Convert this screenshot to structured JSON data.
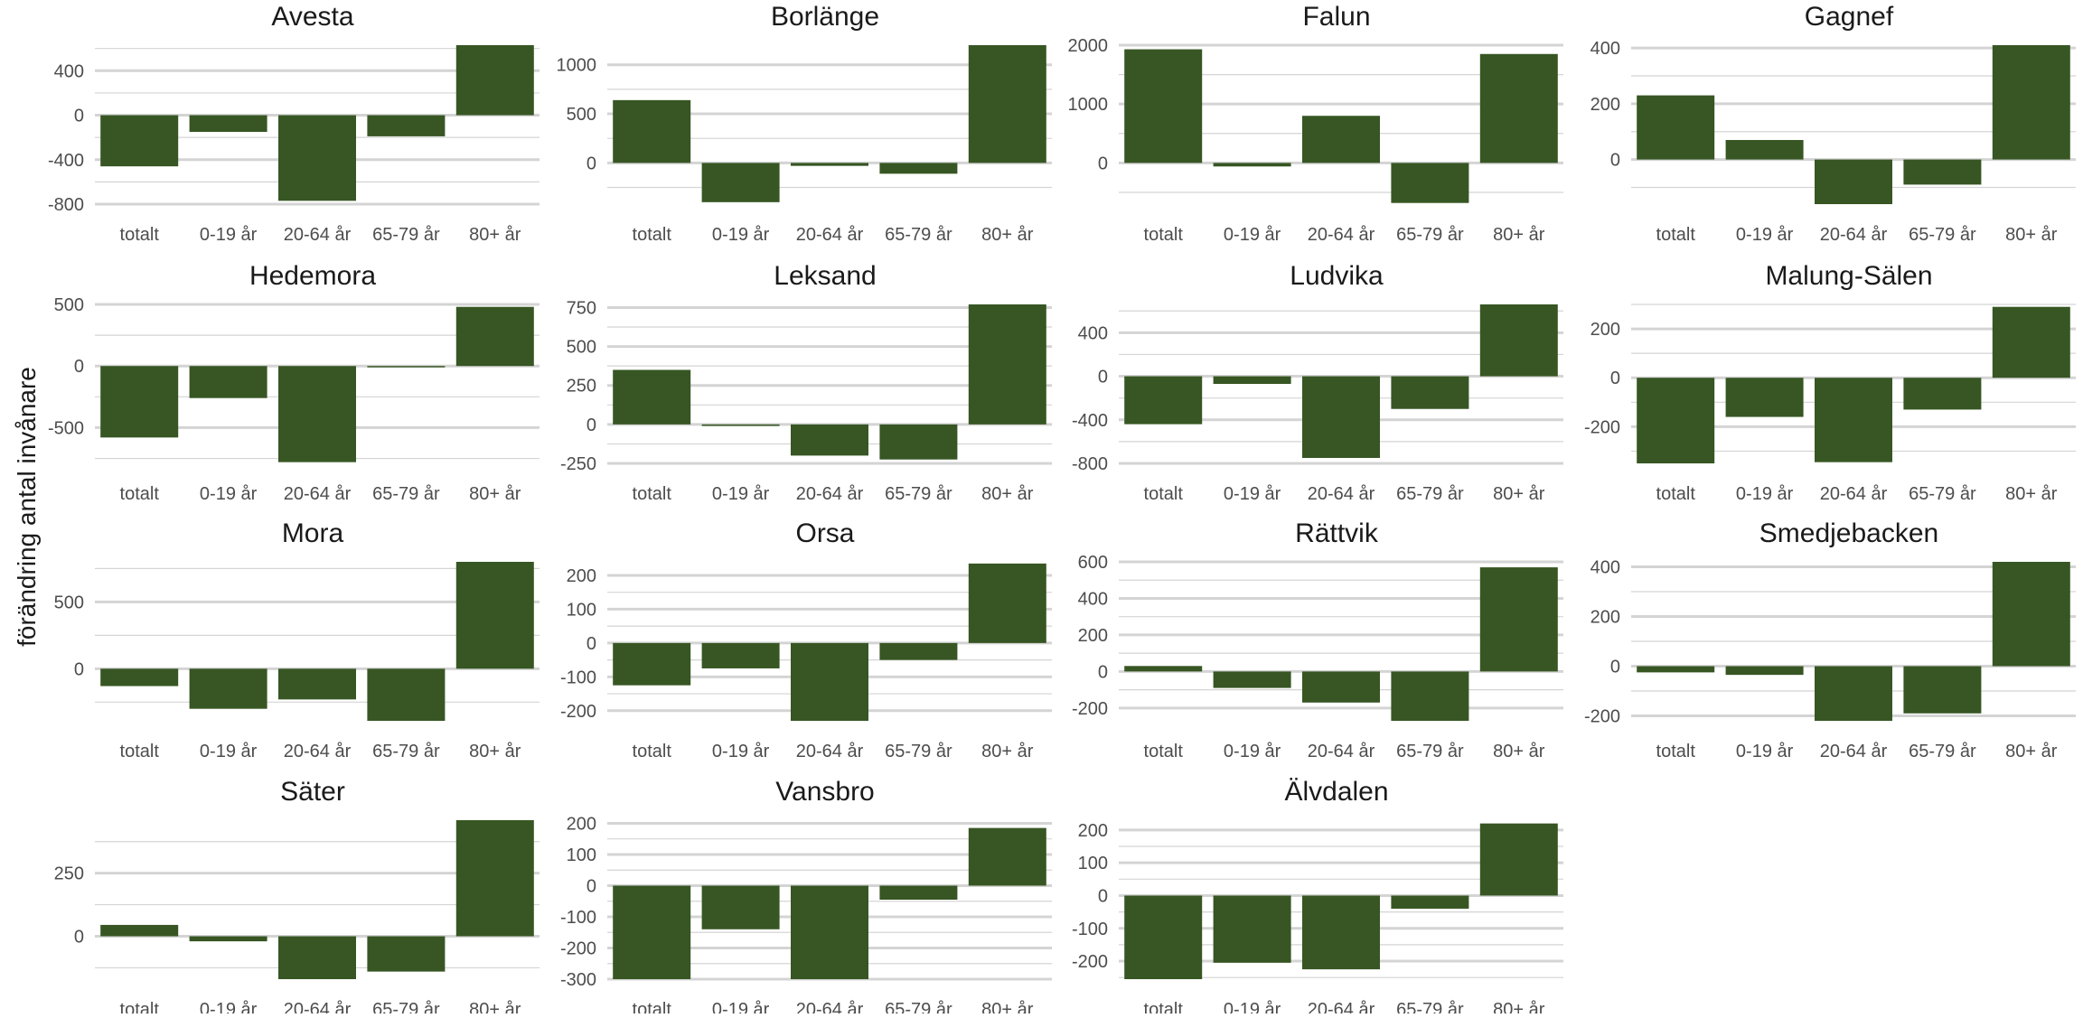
{
  "chart_data": {
    "type": "bar",
    "ylabel": "förändring antal invånare",
    "categories": [
      "totalt",
      "0-19 år",
      "20-64 år",
      "65-79 år",
      "80+ år"
    ],
    "bar_color": "#375623",
    "gridline_color": "#d4d4d4",
    "text_color": "#4d4d4d",
    "panels": [
      {
        "title": "Avesta",
        "values": [
          -460,
          -150,
          -770,
          -190,
          630
        ],
        "ylim": [
          -800,
          630
        ],
        "ticks": [
          -800,
          -400,
          0,
          400
        ],
        "tick_labels": [
          "-800",
          "-400",
          "0",
          "400"
        ]
      },
      {
        "title": "Borlänge",
        "values": [
          640,
          -400,
          -30,
          -110,
          1200
        ],
        "ylim": [
          -420,
          1200
        ],
        "ticks": [
          0,
          500,
          1000
        ],
        "tick_labels": [
          "0",
          "500",
          "1000"
        ]
      },
      {
        "title": "Falun",
        "values": [
          1930,
          -60,
          800,
          -680,
          1850
        ],
        "ylim": [
          -700,
          2000
        ],
        "ticks": [
          0,
          1000,
          2000
        ],
        "tick_labels": [
          "0",
          "1000",
          "2000"
        ]
      },
      {
        "title": "Gagnef",
        "values": [
          230,
          70,
          -160,
          -90,
          410
        ],
        "ylim": [
          -160,
          410
        ],
        "ticks": [
          0,
          200,
          400
        ],
        "tick_labels": [
          "0",
          "200",
          "400"
        ]
      },
      {
        "title": "Hedemora",
        "values": [
          -580,
          -260,
          -780,
          -10,
          480
        ],
        "ylim": [
          -790,
          500
        ],
        "ticks": [
          -500,
          0,
          500
        ],
        "tick_labels": [
          "-500",
          "0",
          "500"
        ]
      },
      {
        "title": "Leksand",
        "values": [
          350,
          -10,
          -200,
          -225,
          770
        ],
        "ylim": [
          -250,
          770
        ],
        "ticks": [
          -250,
          0,
          250,
          500,
          750
        ],
        "tick_labels": [
          "-250",
          "0",
          "250",
          "500",
          "750"
        ]
      },
      {
        "title": "Ludvika",
        "values": [
          -440,
          -70,
          -750,
          -300,
          660
        ],
        "ylim": [
          -800,
          660
        ],
        "ticks": [
          -800,
          -400,
          0,
          400
        ],
        "tick_labels": [
          "-800",
          "-400",
          "0",
          "400"
        ]
      },
      {
        "title": "Malung-Sälen",
        "values": [
          -350,
          -160,
          -345,
          -130,
          290
        ],
        "ylim": [
          -350,
          300
        ],
        "ticks": [
          -200,
          0,
          200
        ],
        "tick_labels": [
          "-200",
          "0",
          "200"
        ]
      },
      {
        "title": "Mora",
        "values": [
          -130,
          -300,
          -230,
          -390,
          800
        ],
        "ylim": [
          -390,
          800
        ],
        "ticks": [
          0,
          500
        ],
        "tick_labels": [
          "0",
          "500"
        ]
      },
      {
        "title": "Orsa",
        "values": [
          -125,
          -75,
          -230,
          -50,
          235
        ],
        "ylim": [
          -230,
          240
        ],
        "ticks": [
          -200,
          -100,
          0,
          100,
          200
        ],
        "tick_labels": [
          "-200",
          "-100",
          "0",
          "100",
          "200"
        ]
      },
      {
        "title": "Rättvik",
        "values": [
          30,
          -90,
          -170,
          -270,
          570
        ],
        "ylim": [
          -270,
          600
        ],
        "ticks": [
          -200,
          0,
          200,
          400,
          600
        ],
        "tick_labels": [
          "-200",
          "0",
          "200",
          "400",
          "600"
        ]
      },
      {
        "title": "Smedjebacken",
        "values": [
          -25,
          -35,
          -220,
          -190,
          420
        ],
        "ylim": [
          -220,
          420
        ],
        "ticks": [
          -200,
          0,
          200,
          400
        ],
        "tick_labels": [
          "-200",
          "0",
          "200",
          "400"
        ]
      },
      {
        "title": "Säter",
        "values": [
          45,
          -20,
          -170,
          -140,
          460
        ],
        "ylim": [
          -170,
          460
        ],
        "ticks": [
          0,
          250
        ],
        "tick_labels": [
          "0",
          "250"
        ]
      },
      {
        "title": "Vansbro",
        "values": [
          -300,
          -140,
          -300,
          -45,
          185
        ],
        "ylim": [
          -300,
          210
        ],
        "ticks": [
          -300,
          -200,
          -100,
          0,
          100,
          200
        ],
        "tick_labels": [
          "-300",
          "-200",
          "-100",
          "0",
          "100",
          "200"
        ]
      },
      {
        "title": "Älvdalen",
        "values": [
          -255,
          -205,
          -225,
          -40,
          220
        ],
        "ylim": [
          -255,
          230
        ],
        "ticks": [
          -200,
          -100,
          0,
          100,
          200
        ],
        "tick_labels": [
          "-200",
          "-100",
          "0",
          "100",
          "200"
        ]
      }
    ]
  }
}
